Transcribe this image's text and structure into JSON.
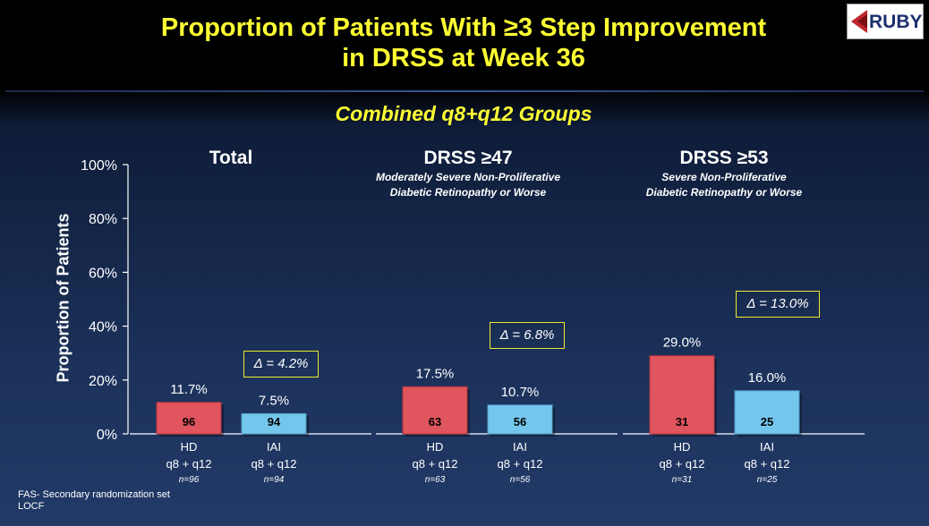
{
  "title_line1": "Proportion of Patients With ≥3 Step Improvement",
  "title_line2": "in DRSS at Week 36",
  "logo_text": "RUBY",
  "subtitle": "Combined q8+q12 Groups",
  "footer_line1": "FAS- Secondary randomization set",
  "footer_line2": "LOCF",
  "colors": {
    "hd": "#e0555e",
    "iai": "#75c6ec",
    "title": "#ffff33"
  },
  "chart_data": {
    "type": "bar",
    "ylabel": "Proportion of Patients",
    "ylim": [
      0,
      100
    ],
    "yticks": [
      0,
      20,
      40,
      60,
      80,
      100
    ],
    "ytick_labels": [
      "0%",
      "20%",
      "40%",
      "60%",
      "80%",
      "100%"
    ],
    "groups": [
      {
        "title": "Total",
        "subtitle_line1": "",
        "subtitle_line2": "",
        "delta": "Δ = 4.2%",
        "bars": [
          {
            "arm": "HD",
            "dose": "q8 + q12",
            "n": "n=96",
            "value": 11.7,
            "label": "11.7%",
            "count": "96"
          },
          {
            "arm": "IAI",
            "dose": "q8 + q12",
            "n": "n=94",
            "value": 7.5,
            "label": "7.5%",
            "count": "94"
          }
        ]
      },
      {
        "title": "DRSS ≥47",
        "subtitle_line1": "Moderately Severe Non-Proliferative",
        "subtitle_line2": "Diabetic Retinopathy or Worse",
        "delta": "Δ = 6.8%",
        "bars": [
          {
            "arm": "HD",
            "dose": "q8 + q12",
            "n": "n=63",
            "value": 17.5,
            "label": "17.5%",
            "count": "63"
          },
          {
            "arm": "IAI",
            "dose": "q8 + q12",
            "n": "n=56",
            "value": 10.7,
            "label": "10.7%",
            "count": "56"
          }
        ]
      },
      {
        "title": "DRSS ≥53",
        "subtitle_line1": "Severe Non-Proliferative",
        "subtitle_line2": "Diabetic Retinopathy or Worse",
        "delta": "Δ = 13.0%",
        "bars": [
          {
            "arm": "HD",
            "dose": "q8 + q12",
            "n": "n=31",
            "value": 29.0,
            "label": "29.0%",
            "count": "31"
          },
          {
            "arm": "IAI",
            "dose": "q8 + q12",
            "n": "n=25",
            "value": 16.0,
            "label": "16.0%",
            "count": "25"
          }
        ]
      }
    ]
  }
}
